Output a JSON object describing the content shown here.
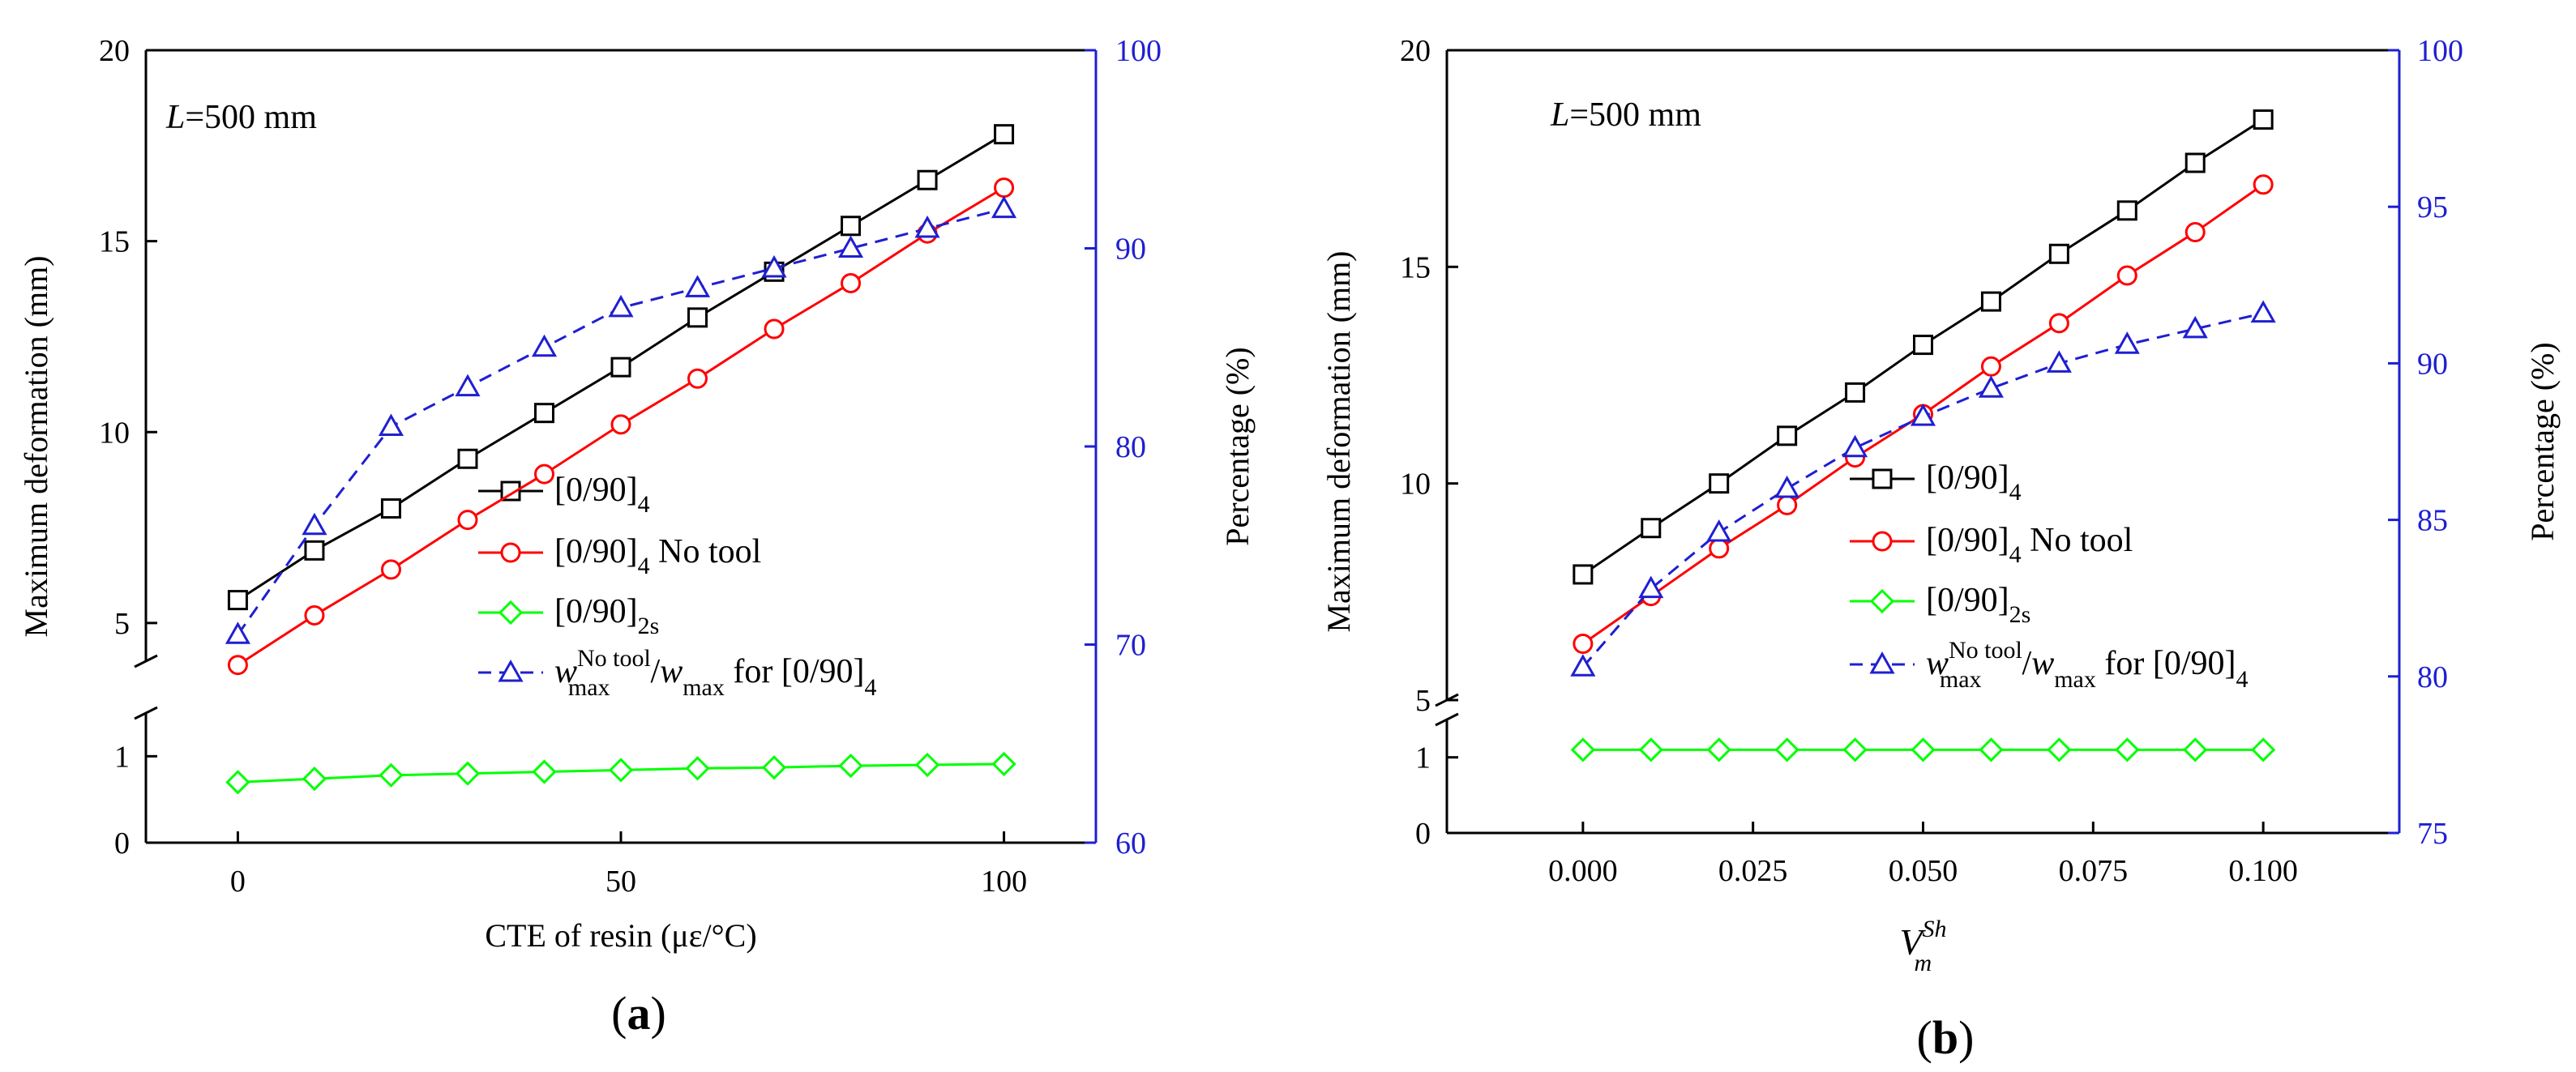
{
  "chart_data": [
    {
      "type": "line",
      "panel_label": "a",
      "annotation": "L=500 mm",
      "annotation_var": "L",
      "annotation_rest": "=500 mm",
      "xlabel": "CTE of resin (με/°C)",
      "ylabel": "Maximum deformation (mm)",
      "y2label": "Percentage (%)",
      "xlim": [
        -12,
        112
      ],
      "x_ticks": [
        0,
        50,
        100
      ],
      "x_tick_labels": [
        "0",
        "50",
        "100"
      ],
      "y_break": [
        1.5,
        4
      ],
      "y_ticks": [
        0,
        1,
        5,
        10,
        15,
        20
      ],
      "y_tick_labels": [
        "0",
        "1",
        "5",
        "10",
        "15",
        "20"
      ],
      "y2lim": [
        60,
        100
      ],
      "y2_ticks": [
        60,
        70,
        80,
        90,
        100
      ],
      "y2_tick_labels": [
        "60",
        "70",
        "80",
        "90",
        "100"
      ],
      "x": [
        0,
        10,
        20,
        30,
        40,
        50,
        60,
        70,
        80,
        90,
        100
      ],
      "series": [
        {
          "name": "[0/90]4",
          "base": "[0/90]",
          "sub": "4",
          "suffix": "",
          "axis": "left",
          "color": "#000000",
          "marker": "square",
          "dash": false,
          "values": [
            5.6,
            6.9,
            8.0,
            9.3,
            10.5,
            11.7,
            13.0,
            14.2,
            15.4,
            16.6,
            17.8
          ]
        },
        {
          "name": "[0/90]4 No tool",
          "base": "[0/90]",
          "sub": "4",
          "suffix": " No tool",
          "axis": "left",
          "color": "#ff0000",
          "marker": "circle",
          "dash": false,
          "values": [
            3.9,
            5.2,
            6.4,
            7.7,
            8.9,
            10.2,
            11.4,
            12.7,
            13.9,
            15.2,
            16.4
          ]
        },
        {
          "name": "[0/90]2s",
          "base": "[0/90]",
          "sub": "2s",
          "suffix": "",
          "axis": "left",
          "color": "#00ff00",
          "marker": "diamond",
          "dash": false,
          "values": [
            0.7,
            0.74,
            0.78,
            0.8,
            0.82,
            0.84,
            0.86,
            0.87,
            0.89,
            0.9,
            0.91
          ]
        },
        {
          "name": "w_max^No tool/w_max for [0/90]4",
          "axis": "right",
          "color": "#1f1fd1",
          "marker": "triangle",
          "dash": true,
          "values": [
            70.5,
            76.0,
            81.0,
            83.0,
            85.0,
            87.0,
            88.0,
            89.0,
            90.0,
            91.0,
            92.0
          ]
        }
      ],
      "legend_ratio": {
        "w": "w",
        "sub1": "max",
        "sup1": "No tool",
        "slash": "/",
        "w2": "w",
        "sub2": "max",
        "tail": " for [0/90]",
        "tail_sub": "4"
      }
    },
    {
      "type": "line",
      "panel_label": "b",
      "annotation": "L=500 mm",
      "annotation_var": "L",
      "annotation_rest": "=500 mm",
      "xlabel": "V_m^Sh",
      "xlabel_main": "V",
      "xlabel_sub": "m",
      "xlabel_sup": "Sh",
      "ylabel": "Maximum deformation (mm)",
      "y2label": "Percentage (%)",
      "xlim": [
        -0.02,
        0.12
      ],
      "x_ticks": [
        0.0,
        0.025,
        0.05,
        0.075,
        0.1
      ],
      "x_tick_labels": [
        "0.000",
        "0.025",
        "0.050",
        "0.075",
        "0.100"
      ],
      "y_break": [
        1.5,
        5
      ],
      "y_ticks": [
        0,
        1,
        5,
        10,
        15,
        20
      ],
      "y_tick_labels": [
        "0",
        "1",
        "5",
        "10",
        "15",
        "20"
      ],
      "y2lim": [
        75,
        100
      ],
      "y2_ticks": [
        75,
        80,
        85,
        90,
        95,
        100
      ],
      "y2_tick_labels": [
        "75",
        "80",
        "85",
        "90",
        "95",
        "100"
      ],
      "x": [
        0.0,
        0.01,
        0.02,
        0.03,
        0.04,
        0.05,
        0.06,
        0.07,
        0.08,
        0.09,
        0.1
      ],
      "series": [
        {
          "name": "[0/90]4",
          "base": "[0/90]",
          "sub": "4",
          "suffix": "",
          "axis": "left",
          "color": "#000000",
          "marker": "square",
          "dash": false,
          "values": [
            7.9,
            8.97,
            10.0,
            11.1,
            12.1,
            13.2,
            14.2,
            15.3,
            16.3,
            17.4,
            18.4
          ]
        },
        {
          "name": "[0/90]4 No tool",
          "base": "[0/90]",
          "sub": "4",
          "suffix": " No tool",
          "axis": "left",
          "color": "#ff0000",
          "marker": "circle",
          "dash": false,
          "values": [
            6.3,
            7.4,
            8.5,
            9.5,
            10.6,
            11.6,
            12.7,
            13.7,
            14.8,
            15.8,
            16.9
          ]
        },
        {
          "name": "[0/90]2s",
          "base": "[0/90]",
          "sub": "2s",
          "suffix": "",
          "axis": "left",
          "color": "#00ff00",
          "marker": "diamond",
          "dash": false,
          "values": [
            1.1,
            1.1,
            1.1,
            1.1,
            1.1,
            1.1,
            1.1,
            1.1,
            1.1,
            1.1,
            1.1
          ]
        },
        {
          "name": "w_max^No tool/w_max for [0/90]4",
          "axis": "right",
          "color": "#1f1fd1",
          "marker": "triangle",
          "dash": true,
          "values": [
            80.3,
            82.8,
            84.6,
            86.0,
            87.3,
            88.3,
            89.2,
            90.0,
            90.6,
            91.1,
            91.6
          ]
        }
      ],
      "legend_ratio": {
        "w": "w",
        "sub1": "max",
        "sup1": "No tool",
        "slash": "/",
        "w2": "w",
        "sub2": "max",
        "tail": " for [0/90]",
        "tail_sub": "4"
      }
    }
  ]
}
